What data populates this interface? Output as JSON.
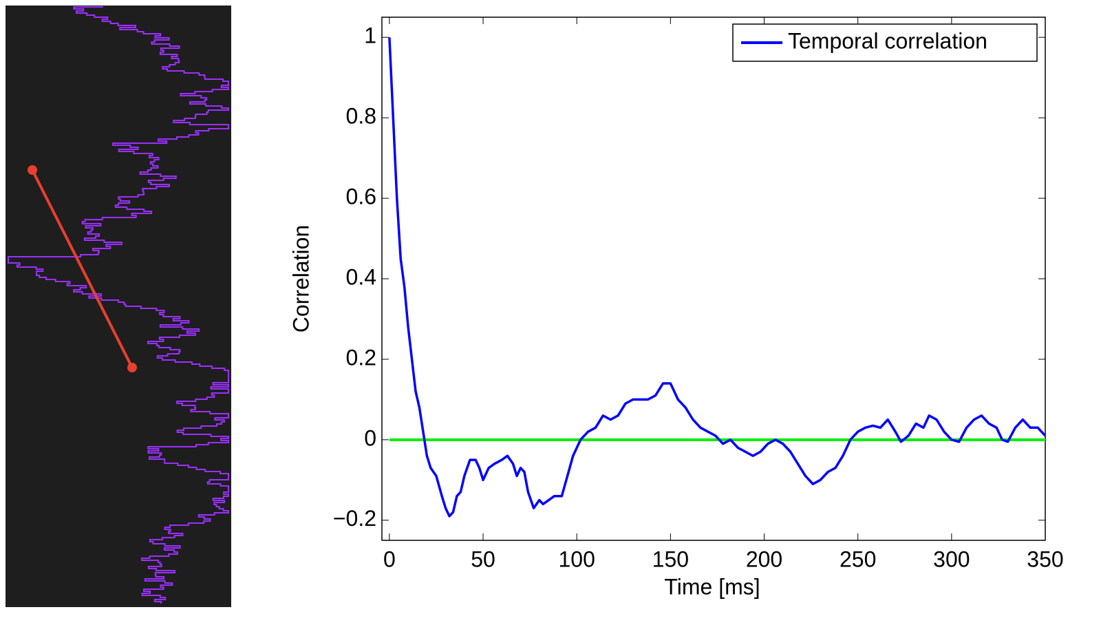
{
  "chart_data": {
    "type": "line",
    "xlabel": "Time [ms]",
    "ylabel": "Correlation",
    "x": [
      0,
      2,
      4,
      6,
      8,
      10,
      12,
      14,
      16,
      18,
      20,
      22,
      25,
      28,
      30,
      32,
      34,
      36,
      38,
      40,
      43,
      46,
      48,
      50,
      53,
      56,
      60,
      63,
      66,
      68,
      70,
      72,
      74,
      77,
      80,
      82,
      85,
      88,
      92,
      95,
      98,
      102,
      106,
      110,
      114,
      118,
      122,
      126,
      130,
      134,
      138,
      142,
      146,
      150,
      154,
      158,
      162,
      166,
      170,
      174,
      178,
      182,
      186,
      190,
      194,
      198,
      202,
      206,
      210,
      214,
      218,
      222,
      226,
      230,
      234,
      238,
      242,
      246,
      250,
      254,
      258,
      262,
      266,
      270,
      273,
      277,
      281,
      285,
      288,
      292,
      296,
      300,
      304,
      308,
      312,
      316,
      320,
      324,
      327,
      330,
      334,
      338,
      342,
      346,
      350
    ],
    "series": [
      {
        "name": "Temporal correlation",
        "color": "#0000ff",
        "values": [
          1,
          0.8,
          0.6,
          0.45,
          0.38,
          0.28,
          0.2,
          0.12,
          0.08,
          0.02,
          -0.04,
          -0.07,
          -0.09,
          -0.14,
          -0.17,
          -0.19,
          -0.18,
          -0.14,
          -0.13,
          -0.09,
          -0.05,
          -0.05,
          -0.07,
          -0.1,
          -0.07,
          -0.06,
          -0.05,
          -0.04,
          -0.06,
          -0.09,
          -0.07,
          -0.08,
          -0.13,
          -0.17,
          -0.15,
          -0.16,
          -0.15,
          -0.14,
          -0.14,
          -0.09,
          -0.04,
          0.0,
          0.02,
          0.03,
          0.06,
          0.05,
          0.06,
          0.09,
          0.1,
          0.1,
          0.1,
          0.11,
          0.14,
          0.14,
          0.1,
          0.08,
          0.05,
          0.03,
          0.02,
          0.01,
          -0.01,
          0.0,
          -0.02,
          -0.03,
          -0.04,
          -0.03,
          -0.01,
          0.0,
          -0.01,
          -0.03,
          -0.06,
          -0.09,
          -0.11,
          -0.1,
          -0.08,
          -0.07,
          -0.04,
          0.0,
          0.02,
          0.03,
          0.035,
          0.03,
          0.05,
          0.02,
          -0.005,
          0.01,
          0.04,
          0.03,
          0.06,
          0.05,
          0.02,
          0.0,
          -0.005,
          0.03,
          0.05,
          0.06,
          0.04,
          0.03,
          0.0,
          -0.005,
          0.03,
          0.05,
          0.03,
          0.03,
          0.01
        ]
      }
    ],
    "hline": {
      "value": 0,
      "color": "#00ee00"
    },
    "xlim": [
      -4,
      350
    ],
    "ylim": [
      -0.25,
      1.05
    ],
    "xticks": [
      0,
      50,
      100,
      150,
      200,
      250,
      300,
      350
    ],
    "yticks": [
      {
        "value": -0.2,
        "label": "−0.2"
      },
      0,
      0.2,
      0.4,
      0.6,
      0.8,
      1
    ],
    "legend": "upper right"
  }
}
